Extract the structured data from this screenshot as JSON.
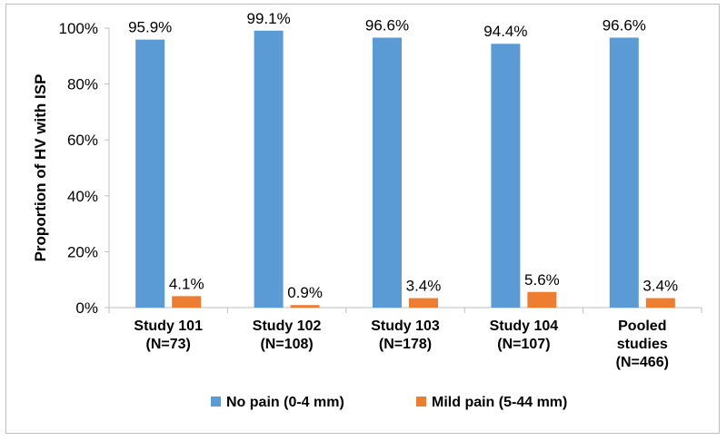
{
  "chart_data": {
    "type": "bar",
    "title": "",
    "xlabel": "",
    "ylabel": "Proportion of HV with ISP",
    "ylim": [
      0,
      100
    ],
    "yticks": [
      "0%",
      "20%",
      "40%",
      "60%",
      "80%",
      "100%"
    ],
    "grid": false,
    "legend_position": "bottom",
    "categories": [
      [
        "Study 101",
        "(N=73)"
      ],
      [
        "Study 102",
        "(N=108)"
      ],
      [
        "Study 103",
        "(N=178)"
      ],
      [
        "Study 104",
        "(N=107)"
      ],
      [
        "Pooled",
        "studies",
        "(N=466)"
      ]
    ],
    "series": [
      {
        "name": "No pain (0-4 mm)",
        "color": "#5b9bd5",
        "values": [
          95.9,
          99.1,
          96.6,
          94.4,
          96.6
        ],
        "labels": [
          "95.9%",
          "99.1%",
          "96.6%",
          "94.4%",
          "96.6%"
        ]
      },
      {
        "name": "Mild pain (5-44 mm)",
        "color": "#ed7d31",
        "values": [
          4.1,
          0.9,
          3.4,
          5.6,
          3.4
        ],
        "labels": [
          "4.1%",
          "0.9%",
          "3.4%",
          "5.6%",
          "3.4%"
        ]
      }
    ]
  }
}
